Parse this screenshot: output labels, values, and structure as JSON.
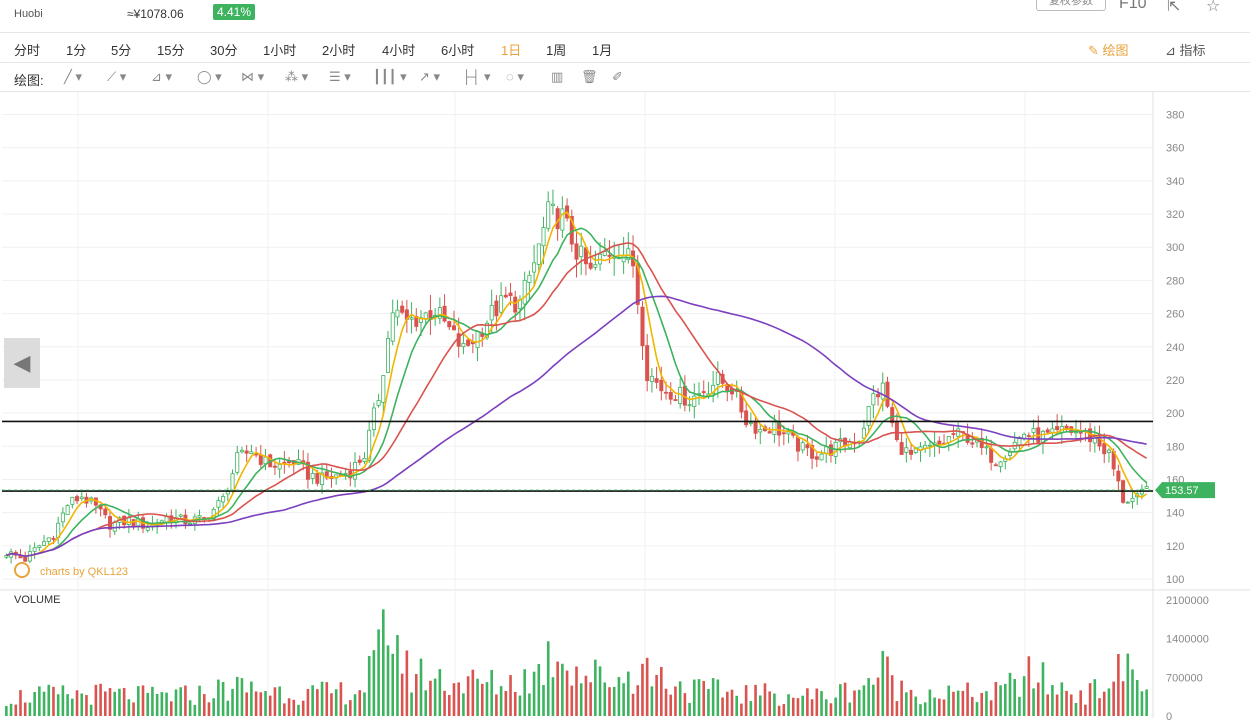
{
  "header": {
    "exchange": "Huobi",
    "cny_price": "≈¥1078.06",
    "change": "4.41%",
    "param_btn": "复权参数",
    "f10": "F10"
  },
  "timeframes": [
    {
      "label": "分时"
    },
    {
      "label": "1分"
    },
    {
      "label": "5分"
    },
    {
      "label": "15分"
    },
    {
      "label": "30分"
    },
    {
      "label": "1小时"
    },
    {
      "label": "2小时"
    },
    {
      "label": "4小时"
    },
    {
      "label": "6小时"
    },
    {
      "label": "1日",
      "active": true
    },
    {
      "label": "1周"
    },
    {
      "label": "1月"
    }
  ],
  "toolbar_right": {
    "draw": "绘图",
    "indicator": "指标"
  },
  "draw_label": "绘图:",
  "colors": {
    "up": "#3db35f",
    "down": "#d9534f",
    "ma5": "#f2b600",
    "ma10": "#3db35f",
    "ma20": "#d9534f",
    "ma60": "#7b3fbf",
    "price_tag": "#3db35f",
    "watermark": "#e8a33b"
  },
  "chart_data": {
    "type": "candlestick",
    "y_axis_ticks": [
      380,
      360,
      340,
      320,
      300,
      280,
      260,
      240,
      220,
      200,
      180,
      160,
      140,
      120,
      100
    ],
    "ylim": [
      100,
      380
    ],
    "current_price": "153.57",
    "current_price_value": 153.57,
    "horizontal_lines": [
      195,
      153
    ],
    "volume_label": "VOLUME",
    "volume_ticks": [
      "2100000",
      "1400000",
      "700000",
      "0"
    ],
    "volume_max": 2100000,
    "watermark": "charts by QKL123",
    "price_anchors": [
      [
        0,
        116
      ],
      [
        4,
        112
      ],
      [
        7,
        120
      ],
      [
        10,
        127
      ],
      [
        13,
        145
      ],
      [
        16,
        150
      ],
      [
        19,
        143
      ],
      [
        22,
        133
      ],
      [
        26,
        135
      ],
      [
        30,
        132
      ],
      [
        34,
        137
      ],
      [
        38,
        135
      ],
      [
        42,
        136
      ],
      [
        46,
        148
      ],
      [
        49,
        172
      ],
      [
        52,
        178
      ],
      [
        55,
        170
      ],
      [
        58,
        168
      ],
      [
        61,
        171
      ],
      [
        64,
        163
      ],
      [
        67,
        160
      ],
      [
        70,
        162
      ],
      [
        73,
        165
      ],
      [
        76,
        175
      ],
      [
        79,
        210
      ],
      [
        82,
        262
      ],
      [
        85,
        255
      ],
      [
        88,
        258
      ],
      [
        91,
        262
      ],
      [
        94,
        250
      ],
      [
        97,
        238
      ],
      [
        100,
        248
      ],
      [
        103,
        260
      ],
      [
        106,
        268
      ],
      [
        109,
        266
      ],
      [
        112,
        290
      ],
      [
        115,
        320
      ],
      [
        118,
        318
      ],
      [
        121,
        298
      ],
      [
        124,
        284
      ],
      [
        127,
        296
      ],
      [
        130,
        300
      ],
      [
        133,
        290
      ],
      [
        136,
        225
      ],
      [
        139,
        215
      ],
      [
        142,
        212
      ],
      [
        145,
        208
      ],
      [
        148,
        214
      ],
      [
        151,
        220
      ],
      [
        154,
        215
      ],
      [
        157,
        196
      ],
      [
        160,
        190
      ],
      [
        163,
        192
      ],
      [
        166,
        185
      ],
      [
        169,
        178
      ],
      [
        172,
        175
      ],
      [
        175,
        178
      ],
      [
        178,
        182
      ],
      [
        181,
        185
      ],
      [
        184,
        210
      ],
      [
        186,
        215
      ],
      [
        189,
        182
      ],
      [
        192,
        174
      ],
      [
        195,
        178
      ],
      [
        198,
        180
      ],
      [
        201,
        187
      ],
      [
        204,
        186
      ],
      [
        207,
        178
      ],
      [
        210,
        172
      ],
      [
        213,
        179
      ],
      [
        216,
        188
      ],
      [
        219,
        186
      ],
      [
        222,
        186
      ],
      [
        225,
        190
      ],
      [
        228,
        188
      ],
      [
        231,
        184
      ],
      [
        234,
        175
      ],
      [
        237,
        148
      ],
      [
        240,
        148
      ],
      [
        242,
        154
      ]
    ],
    "volume_anchors": [
      [
        0,
        360000
      ],
      [
        10,
        400000
      ],
      [
        20,
        420000
      ],
      [
        30,
        380000
      ],
      [
        40,
        400000
      ],
      [
        48,
        550000
      ],
      [
        55,
        500000
      ],
      [
        65,
        420000
      ],
      [
        75,
        480000
      ],
      [
        79,
        1100000
      ],
      [
        81,
        1900000
      ],
      [
        85,
        850000
      ],
      [
        95,
        650000
      ],
      [
        105,
        600000
      ],
      [
        112,
        750000
      ],
      [
        117,
        1300000
      ],
      [
        122,
        800000
      ],
      [
        130,
        700000
      ],
      [
        135,
        900000
      ],
      [
        145,
        500000
      ],
      [
        155,
        450000
      ],
      [
        165,
        400000
      ],
      [
        175,
        380000
      ],
      [
        183,
        650000
      ],
      [
        186,
        900000
      ],
      [
        190,
        500000
      ],
      [
        200,
        420000
      ],
      [
        210,
        430000
      ],
      [
        218,
        800000
      ],
      [
        222,
        550000
      ],
      [
        230,
        420000
      ],
      [
        236,
        800000
      ],
      [
        239,
        950000
      ],
      [
        242,
        400000
      ]
    ]
  }
}
